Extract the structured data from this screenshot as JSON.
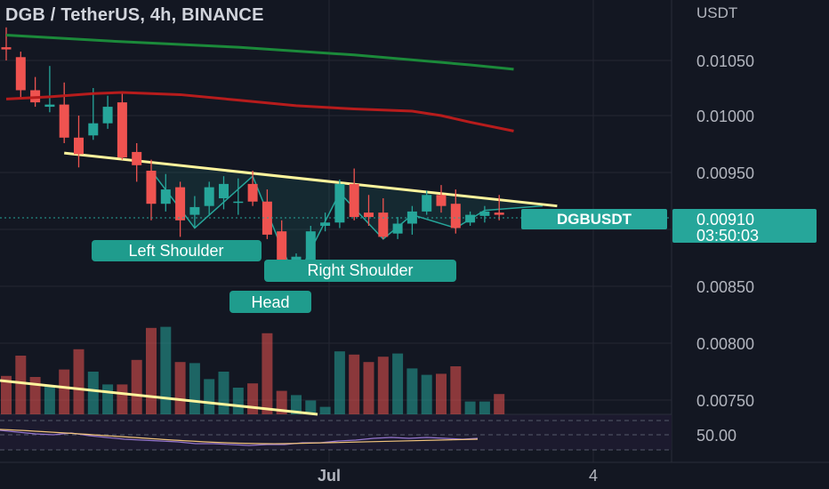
{
  "title": "DGB / TetherUS, 4h, BINANCE",
  "price_axis": {
    "unit": "USDT",
    "ticks": [
      "0.01050",
      "0.01000",
      "0.00950",
      "0.00850",
      "0.00800",
      "0.00750"
    ]
  },
  "time_axis": {
    "ticks": [
      "Jul",
      "4"
    ]
  },
  "indicator": {
    "level_label": "50.00"
  },
  "price_badge": {
    "symbol": "DGBUSDT",
    "price": "0.00910",
    "countdown": "03:50:03"
  },
  "annotations": {
    "left_shoulder": "Left Shoulder",
    "head": "Head",
    "right_shoulder": "Right Shoulder"
  },
  "colors": {
    "background": "#131722",
    "up": "#26a69a",
    "down": "#ef5350",
    "ma_slow": "#1b8a3a",
    "ma_mid": "#b71c1c",
    "neckline": "#fff59d",
    "badge": "#26a69a",
    "rsi": "#9575cd"
  },
  "chart_data": {
    "type": "candlestick",
    "title": "DGB / TetherUS, 4h, BINANCE",
    "y_unit": "USDT",
    "ylim": [
      0.0073,
      0.0108
    ],
    "last_price": 0.0091,
    "grid": true,
    "candles": [
      {
        "o": 0.01062,
        "h": 0.0108,
        "l": 0.0105,
        "c": 0.0106
      },
      {
        "o": 0.01053,
        "h": 0.01058,
        "l": 0.01016,
        "c": 0.01023
      },
      {
        "o": 0.01023,
        "h": 0.01035,
        "l": 0.01008,
        "c": 0.01012
      },
      {
        "o": 0.01008,
        "h": 0.01045,
        "l": 0.01003,
        "c": 0.0101
      },
      {
        "o": 0.0101,
        "h": 0.0103,
        "l": 0.00975,
        "c": 0.0098
      },
      {
        "o": 0.0098,
        "h": 0.01,
        "l": 0.00953,
        "c": 0.00965
      },
      {
        "o": 0.00982,
        "h": 0.01025,
        "l": 0.00978,
        "c": 0.00993
      },
      {
        "o": 0.00993,
        "h": 0.01018,
        "l": 0.00988,
        "c": 0.01008
      },
      {
        "o": 0.01012,
        "h": 0.0102,
        "l": 0.0096,
        "c": 0.00962
      },
      {
        "o": 0.00967,
        "h": 0.00975,
        "l": 0.0094,
        "c": 0.00955
      },
      {
        "o": 0.0095,
        "h": 0.0096,
        "l": 0.00905,
        "c": 0.0092
      },
      {
        "o": 0.0092,
        "h": 0.00947,
        "l": 0.00913,
        "c": 0.00933
      },
      {
        "o": 0.00935,
        "h": 0.0094,
        "l": 0.0089,
        "c": 0.00905
      },
      {
        "o": 0.0091,
        "h": 0.00927,
        "l": 0.00898,
        "c": 0.00917
      },
      {
        "o": 0.00918,
        "h": 0.0094,
        "l": 0.0091,
        "c": 0.00935
      },
      {
        "o": 0.00925,
        "h": 0.00945,
        "l": 0.00915,
        "c": 0.00938
      },
      {
        "o": 0.00922,
        "h": 0.00943,
        "l": 0.0091,
        "c": 0.00922
      },
      {
        "o": 0.00938,
        "h": 0.0095,
        "l": 0.00918,
        "c": 0.00922
      },
      {
        "o": 0.00922,
        "h": 0.00933,
        "l": 0.00888,
        "c": 0.00892
      },
      {
        "o": 0.00895,
        "h": 0.00905,
        "l": 0.00855,
        "c": 0.00862
      },
      {
        "o": 0.00866,
        "h": 0.00875,
        "l": 0.00857,
        "c": 0.00872
      },
      {
        "o": 0.00868,
        "h": 0.009,
        "l": 0.00865,
        "c": 0.00895
      },
      {
        "o": 0.009,
        "h": 0.00912,
        "l": 0.00895,
        "c": 0.00903
      },
      {
        "o": 0.00903,
        "h": 0.00942,
        "l": 0.00898,
        "c": 0.00938
      },
      {
        "o": 0.00938,
        "h": 0.00952,
        "l": 0.00905,
        "c": 0.00908
      },
      {
        "o": 0.00912,
        "h": 0.00928,
        "l": 0.009,
        "c": 0.00908
      },
      {
        "o": 0.00912,
        "h": 0.00925,
        "l": 0.00888,
        "c": 0.0089
      },
      {
        "o": 0.00893,
        "h": 0.00908,
        "l": 0.00888,
        "c": 0.00902
      },
      {
        "o": 0.00902,
        "h": 0.00918,
        "l": 0.00892,
        "c": 0.00913
      },
      {
        "o": 0.00913,
        "h": 0.00932,
        "l": 0.0091,
        "c": 0.00928
      },
      {
        "o": 0.00928,
        "h": 0.00937,
        "l": 0.00912,
        "c": 0.00918
      },
      {
        "o": 0.0092,
        "h": 0.00933,
        "l": 0.00893,
        "c": 0.00898
      },
      {
        "o": 0.00903,
        "h": 0.00913,
        "l": 0.009,
        "c": 0.0091
      },
      {
        "o": 0.00909,
        "h": 0.00918,
        "l": 0.00903,
        "c": 0.00913
      },
      {
        "o": 0.00912,
        "h": 0.00928,
        "l": 0.00905,
        "c": 0.0091
      }
    ],
    "volume": [
      0.36,
      0.55,
      0.35,
      0.27,
      0.42,
      0.61,
      0.4,
      0.28,
      0.28,
      0.51,
      0.81,
      0.82,
      0.49,
      0.48,
      0.33,
      0.4,
      0.25,
      0.29,
      0.76,
      0.22,
      0.18,
      0.13,
      0.07,
      0.59,
      0.56,
      0.49,
      0.54,
      0.57,
      0.43,
      0.37,
      0.38,
      0.45,
      0.12,
      0.12,
      0.19
    ],
    "ma_slow": [
      [
        0,
        0.01073
      ],
      [
        8,
        0.01067
      ],
      [
        16,
        0.01062
      ],
      [
        24,
        0.01055
      ],
      [
        32,
        0.01046
      ],
      [
        35,
        0.01042
      ]
    ],
    "ma_mid": [
      [
        0,
        0.01015
      ],
      [
        3,
        0.01017
      ],
      [
        6,
        0.0102
      ],
      [
        8,
        0.01021
      ],
      [
        12,
        0.01019
      ],
      [
        16,
        0.01014
      ],
      [
        20,
        0.01009
      ],
      [
        24,
        0.01006
      ],
      [
        28,
        0.01004
      ],
      [
        30,
        0.01
      ],
      [
        32,
        0.00994
      ],
      [
        35,
        0.00986
      ]
    ],
    "neckline": [
      [
        4,
        0.00966
      ],
      [
        38,
        0.00918
      ]
    ],
    "pattern_outline": [
      [
        10,
        0.0095
      ],
      [
        13,
        0.00898
      ],
      [
        17,
        0.00945
      ],
      [
        19,
        0.0088
      ],
      [
        20,
        0.00852
      ],
      [
        23,
        0.0093
      ],
      [
        26,
        0.00888
      ],
      [
        28,
        0.0091
      ],
      [
        31,
        0.00898
      ],
      [
        33,
        0.00914
      ],
      [
        37,
        0.00918
      ]
    ]
  }
}
